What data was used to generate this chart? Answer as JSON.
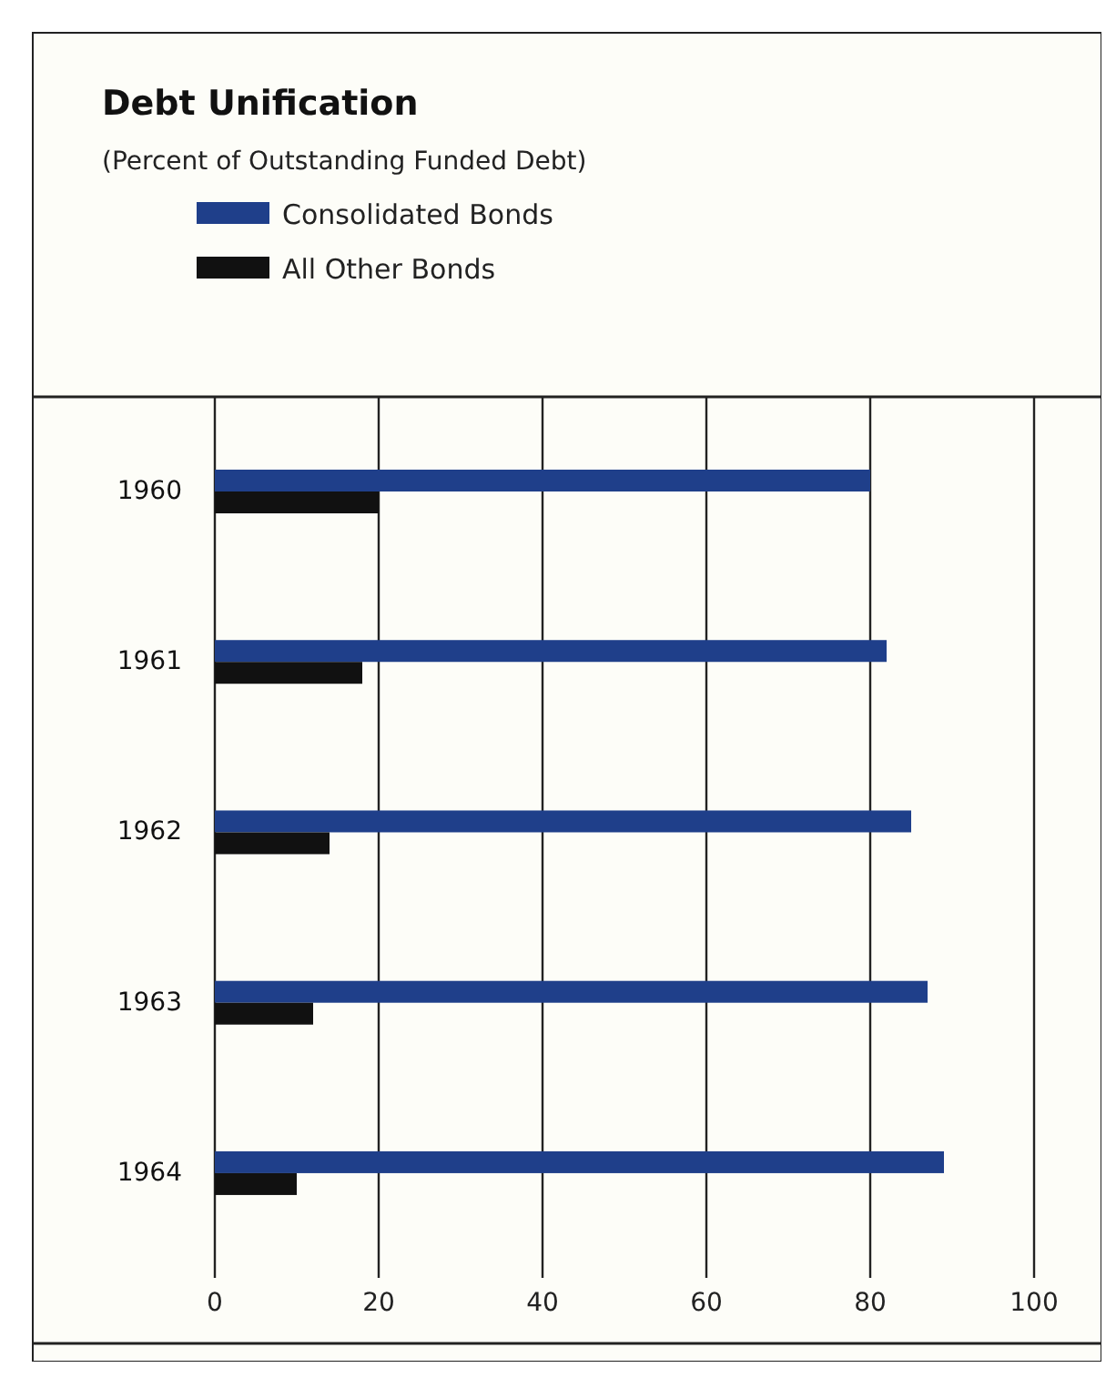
{
  "chart_data": {
    "type": "bar",
    "orientation": "horizontal",
    "title": "Debt Unification",
    "subtitle": "(Percent of Outstanding Funded Debt)",
    "categories": [
      "1960",
      "1961",
      "1962",
      "1963",
      "1964"
    ],
    "series": [
      {
        "name": "Consolidated Bonds",
        "color": "#1f3f8a",
        "values": [
          80,
          82,
          85,
          87,
          89
        ]
      },
      {
        "name": "All Other Bonds",
        "color": "#111111",
        "values": [
          20,
          18,
          14,
          12,
          10
        ]
      }
    ],
    "xlim": [
      0,
      100
    ],
    "xticks": [
      0,
      20,
      40,
      60,
      80,
      100
    ],
    "grid": "x",
    "legend": "top left"
  }
}
